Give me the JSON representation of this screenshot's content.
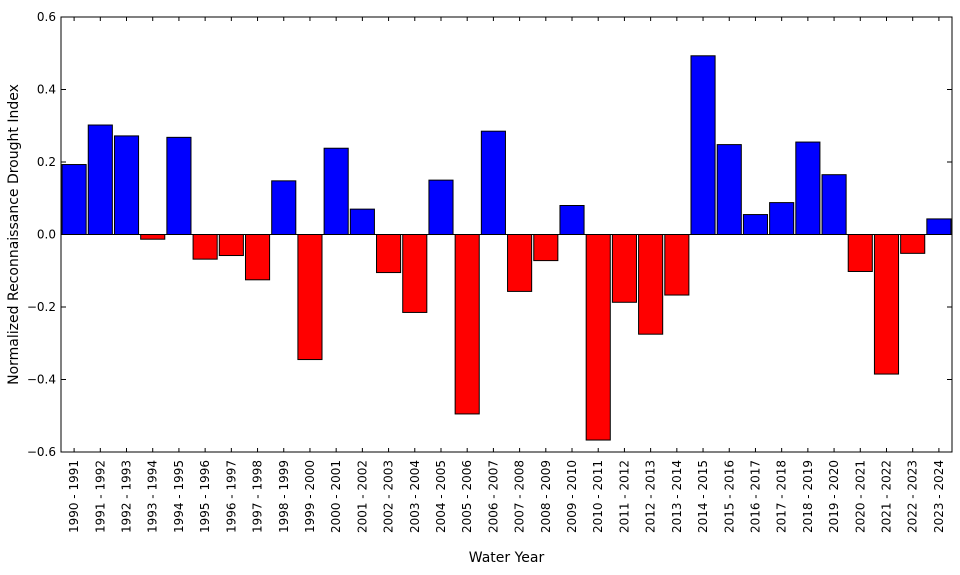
{
  "chart_data": {
    "type": "bar",
    "xlabel": "Water Year",
    "ylabel": "Normalized Reconnaissance Drought Index",
    "ylim": [
      -0.6,
      0.6
    ],
    "yticks": [
      "-0.6",
      "-0.4",
      "-0.2",
      "0.0",
      "0.2",
      "0.4",
      "0.6"
    ],
    "grid": false,
    "colors": {
      "positive": "#0000ff",
      "negative": "#ff0000",
      "edge": "#000000"
    },
    "categories": [
      "1990 - 1991",
      "1991 - 1992",
      "1992 - 1993",
      "1993 - 1994",
      "1994 - 1995",
      "1995 - 1996",
      "1996 - 1997",
      "1997 - 1998",
      "1998 - 1999",
      "1999 - 2000",
      "2000 - 2001",
      "2001 - 2002",
      "2002 - 2003",
      "2003 - 2004",
      "2004 - 2005",
      "2005 - 2006",
      "2006 - 2007",
      "2007 - 2008",
      "2008 - 2009",
      "2009 - 2010",
      "2010 - 2011",
      "2011 - 2012",
      "2012 - 2013",
      "2013 - 2014",
      "2014 - 2015",
      "2015 - 2016",
      "2016 - 2017",
      "2017 - 2018",
      "2018 - 2019",
      "2019 - 2020",
      "2020 - 2021",
      "2021 - 2022",
      "2022 - 2023",
      "2023 - 2024"
    ],
    "values": [
      0.193,
      0.302,
      0.272,
      -0.013,
      0.268,
      -0.068,
      -0.058,
      -0.125,
      0.148,
      -0.345,
      0.238,
      0.07,
      -0.105,
      -0.215,
      0.15,
      -0.495,
      0.285,
      -0.157,
      -0.072,
      0.08,
      -0.567,
      -0.187,
      -0.275,
      -0.167,
      0.493,
      0.248,
      0.055,
      0.088,
      0.255,
      0.165,
      -0.102,
      -0.385,
      -0.052,
      0.043
    ]
  }
}
